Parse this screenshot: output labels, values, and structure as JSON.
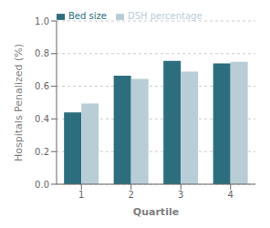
{
  "chart_data": {
    "type": "bar",
    "categories": [
      "1",
      "2",
      "3",
      "4"
    ],
    "series": [
      {
        "name": "Bed size",
        "color": "#2d6e7e",
        "values": [
          0.44,
          0.665,
          0.755,
          0.74
        ]
      },
      {
        "name": "DSH percentage",
        "color": "#b8cdd6",
        "values": [
          0.495,
          0.645,
          0.69,
          0.75
        ]
      }
    ],
    "xlabel": "Quartile",
    "ylabel": "Hospitals Penalized (%)",
    "ylim": [
      0.0,
      1.0
    ],
    "yticks": [
      {
        "value": 0,
        "label": "0.0"
      },
      0.2,
      0.4,
      0.6,
      0.8,
      {
        "value": 1,
        "label": "1.0"
      }
    ],
    "grid": true,
    "legend": "upper left"
  }
}
